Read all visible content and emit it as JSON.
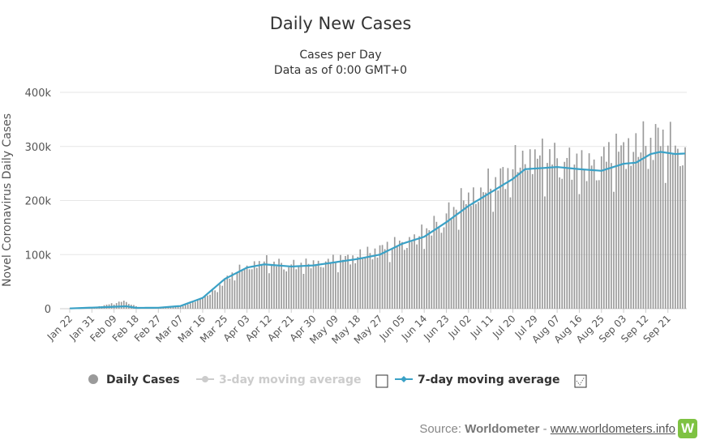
{
  "chart_data": {
    "type": "bar",
    "title": "Daily New Cases",
    "subtitle_line1": "Cases per Day",
    "subtitle_line2": "Data as of 0:00 GMT+0",
    "ylabel": "Novel Coronavirus Daily Cases",
    "ylim": [
      0,
      400000
    ],
    "yticks": [
      "0",
      "100k",
      "200k",
      "300k",
      "400k"
    ],
    "x_tick_labels": [
      "Jan 22",
      "Jan 31",
      "Feb 09",
      "Feb 18",
      "Feb 27",
      "Mar 07",
      "Mar 16",
      "Mar 25",
      "Apr 03",
      "Apr 12",
      "Apr 21",
      "Apr 30",
      "May 09",
      "May 18",
      "May 27",
      "Jun 05",
      "Jun 14",
      "Jun 23",
      "Jul 02",
      "Jul 11",
      "Jul 20",
      "Jul 29",
      "Aug 07",
      "Aug 16",
      "Aug 25",
      "Sep 03",
      "Sep 12",
      "Sep 21"
    ],
    "date_range": [
      "2020-01-22",
      "2020-09-28"
    ],
    "series": [
      {
        "name": "Daily Cases",
        "color": "#9a9a9a",
        "sampled_values": [
          {
            "date": "2020-01-22",
            "value": 600
          },
          {
            "date": "2020-02-01",
            "value": 2500
          },
          {
            "date": "2020-02-13",
            "value": 14000
          },
          {
            "date": "2020-02-20",
            "value": 1000
          },
          {
            "date": "2020-03-01",
            "value": 2000
          },
          {
            "date": "2020-03-10",
            "value": 8000
          },
          {
            "date": "2020-03-20",
            "value": 30000
          },
          {
            "date": "2020-03-28",
            "value": 65000
          },
          {
            "date": "2020-04-04",
            "value": 80000
          },
          {
            "date": "2020-04-10",
            "value": 88000
          },
          {
            "date": "2020-04-20",
            "value": 80000
          },
          {
            "date": "2020-05-01",
            "value": 85000
          },
          {
            "date": "2020-05-15",
            "value": 95000
          },
          {
            "date": "2020-05-30",
            "value": 115000
          },
          {
            "date": "2020-06-10",
            "value": 130000
          },
          {
            "date": "2020-06-20",
            "value": 160000
          },
          {
            "date": "2020-07-01",
            "value": 205000
          },
          {
            "date": "2020-07-15",
            "value": 240000
          },
          {
            "date": "2020-07-25",
            "value": 285000
          },
          {
            "date": "2020-08-05",
            "value": 280000
          },
          {
            "date": "2020-08-20",
            "value": 265000
          },
          {
            "date": "2020-09-01",
            "value": 295000
          },
          {
            "date": "2020-09-12",
            "value": 310000
          },
          {
            "date": "2020-09-18",
            "value": 318000
          },
          {
            "date": "2020-09-28",
            "value": 288000
          }
        ]
      },
      {
        "name": "3-day moving average",
        "color": "#cccccc",
        "visible": false
      },
      {
        "name": "7-day moving average",
        "color": "#3aa1c6",
        "visible": true,
        "sampled_values": [
          {
            "date": "2020-01-22",
            "value": 500
          },
          {
            "date": "2020-01-31",
            "value": 2000
          },
          {
            "date": "2020-02-09",
            "value": 3500
          },
          {
            "date": "2020-02-14",
            "value": 4500
          },
          {
            "date": "2020-02-18",
            "value": 1500
          },
          {
            "date": "2020-02-27",
            "value": 1800
          },
          {
            "date": "2020-03-07",
            "value": 5000
          },
          {
            "date": "2020-03-16",
            "value": 20000
          },
          {
            "date": "2020-03-25",
            "value": 55000
          },
          {
            "date": "2020-04-03",
            "value": 76000
          },
          {
            "date": "2020-04-10",
            "value": 82000
          },
          {
            "date": "2020-04-21",
            "value": 78000
          },
          {
            "date": "2020-04-30",
            "value": 80000
          },
          {
            "date": "2020-05-09",
            "value": 86000
          },
          {
            "date": "2020-05-18",
            "value": 92000
          },
          {
            "date": "2020-05-27",
            "value": 100000
          },
          {
            "date": "2020-06-05",
            "value": 120000
          },
          {
            "date": "2020-06-14",
            "value": 133000
          },
          {
            "date": "2020-06-23",
            "value": 160000
          },
          {
            "date": "2020-07-02",
            "value": 190000
          },
          {
            "date": "2020-07-11",
            "value": 215000
          },
          {
            "date": "2020-07-20",
            "value": 240000
          },
          {
            "date": "2020-07-25",
            "value": 258000
          },
          {
            "date": "2020-08-01",
            "value": 260000
          },
          {
            "date": "2020-08-07",
            "value": 262000
          },
          {
            "date": "2020-08-16",
            "value": 258000
          },
          {
            "date": "2020-08-25",
            "value": 255000
          },
          {
            "date": "2020-09-03",
            "value": 268000
          },
          {
            "date": "2020-09-08",
            "value": 270000
          },
          {
            "date": "2020-09-14",
            "value": 286000
          },
          {
            "date": "2020-09-18",
            "value": 290000
          },
          {
            "date": "2020-09-24",
            "value": 286000
          },
          {
            "date": "2020-09-28",
            "value": 287000
          }
        ]
      }
    ],
    "legend": {
      "placement": "bottom",
      "items": [
        {
          "label": "Daily Cases",
          "color": "#9a9a9a",
          "active": true
        },
        {
          "label": "3-day moving average",
          "color": "#cccccc",
          "active": false
        },
        {
          "label": "7-day moving average",
          "color": "#3aa1c6",
          "active": true
        }
      ]
    },
    "grid": true
  },
  "credit": {
    "prefix": "Source: ",
    "source": "Worldometer",
    "separator": " - ",
    "link": "www.worldometers.info",
    "logo": "W"
  }
}
